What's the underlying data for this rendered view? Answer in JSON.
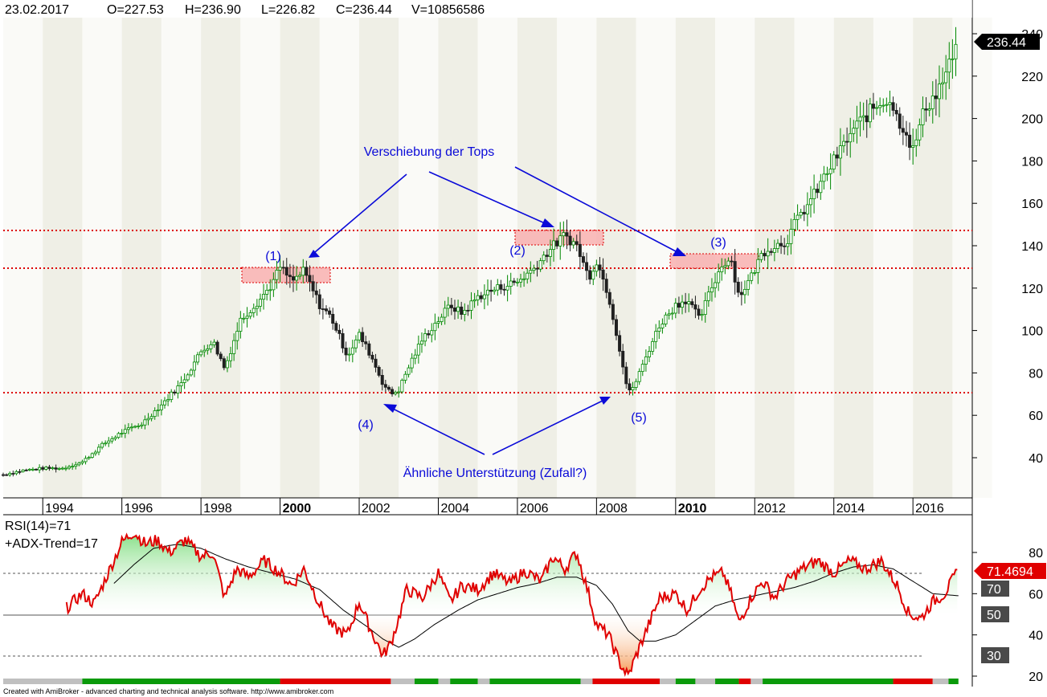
{
  "header": {
    "date": "23.02.2017",
    "open": "O=227.53",
    "high": "H=236.90",
    "low": "L=226.82",
    "close": "C=236.44",
    "volume": "V=10856586"
  },
  "price_tag": "236.44",
  "footer": "Created with AmiBroker - advanced charting and technical analysis software. http://www.amibroker.com",
  "chart_data": [
    {
      "type": "candlestick",
      "y_ticks": [
        40,
        60,
        80,
        100,
        120,
        140,
        160,
        180,
        200,
        220,
        240
      ],
      "ylim": [
        20,
        243
      ],
      "x_ticks": [
        "1994",
        "1996",
        "1998",
        "2000",
        "2002",
        "2004",
        "2006",
        "2008",
        "2010",
        "2012",
        "2014",
        "2016"
      ],
      "bold_ticks": [
        "2000",
        "2010"
      ],
      "xlim": [
        1993.0,
        2017.5
      ],
      "last": 236.44,
      "close_path": [
        [
          1993.0,
          32
        ],
        [
          1993.5,
          34
        ],
        [
          1994.0,
          35
        ],
        [
          1994.5,
          35
        ],
        [
          1995.0,
          38
        ],
        [
          1995.5,
          46
        ],
        [
          1996.0,
          52
        ],
        [
          1996.5,
          56
        ],
        [
          1997.0,
          65
        ],
        [
          1997.5,
          75
        ],
        [
          1998.0,
          90
        ],
        [
          1998.3,
          95
        ],
        [
          1998.6,
          82
        ],
        [
          1999.0,
          105
        ],
        [
          1999.5,
          115
        ],
        [
          1999.8,
          122
        ],
        [
          2000.0,
          130
        ],
        [
          2000.3,
          123
        ],
        [
          2000.6,
          128
        ],
        [
          2001.0,
          112
        ],
        [
          2001.3,
          106
        ],
        [
          2001.7,
          88
        ],
        [
          2002.0,
          98
        ],
        [
          2002.3,
          88
        ],
        [
          2002.6,
          75
        ],
        [
          2002.8,
          70
        ],
        [
          2003.0,
          72
        ],
        [
          2003.3,
          85
        ],
        [
          2003.6,
          96
        ],
        [
          2004.0,
          105
        ],
        [
          2004.3,
          112
        ],
        [
          2004.6,
          108
        ],
        [
          2005.0,
          116
        ],
        [
          2005.5,
          120
        ],
        [
          2006.0,
          123
        ],
        [
          2006.4,
          129
        ],
        [
          2006.8,
          138
        ],
        [
          2007.2,
          145
        ],
        [
          2007.5,
          140
        ],
        [
          2007.8,
          125
        ],
        [
          2008.0,
          133
        ],
        [
          2008.3,
          117
        ],
        [
          2008.6,
          90
        ],
        [
          2008.8,
          70
        ],
        [
          2009.0,
          76
        ],
        [
          2009.3,
          90
        ],
        [
          2009.6,
          103
        ],
        [
          2010.0,
          112
        ],
        [
          2010.3,
          115
        ],
        [
          2010.6,
          105
        ],
        [
          2010.9,
          120
        ],
        [
          2011.2,
          132
        ],
        [
          2011.4,
          134
        ],
        [
          2011.6,
          116
        ],
        [
          2011.9,
          125
        ],
        [
          2012.2,
          137
        ],
        [
          2012.5,
          140
        ],
        [
          2012.8,
          142
        ],
        [
          2013.0,
          150
        ],
        [
          2013.5,
          164
        ],
        [
          2014.0,
          180
        ],
        [
          2014.5,
          195
        ],
        [
          2015.0,
          205
        ],
        [
          2015.4,
          210
        ],
        [
          2015.6,
          200
        ],
        [
          2015.8,
          195
        ],
        [
          2016.0,
          185
        ],
        [
          2016.3,
          205
        ],
        [
          2016.6,
          212
        ],
        [
          2016.9,
          224
        ],
        [
          2017.15,
          236.44
        ]
      ]
    },
    {
      "type": "line",
      "series": [
        {
          "name": "RSI(14)=71"
        },
        {
          "name": "+ADX-Trend=17"
        }
      ],
      "y_ticks": [
        20,
        40,
        60,
        80
      ],
      "ylim": [
        17,
        92
      ],
      "bands": [
        "70",
        "50",
        "30"
      ],
      "last": "71.4694",
      "rsi_path": [
        [
          1994.6,
          53
        ],
        [
          1995.0,
          60
        ],
        [
          1995.3,
          55
        ],
        [
          1995.7,
          72
        ],
        [
          1996.0,
          85
        ],
        [
          1996.3,
          90
        ],
        [
          1996.6,
          84
        ],
        [
          1996.9,
          86
        ],
        [
          1997.2,
          80
        ],
        [
          1997.6,
          86
        ],
        [
          1998.0,
          78
        ],
        [
          1998.3,
          80
        ],
        [
          1998.6,
          58
        ],
        [
          1998.9,
          72
        ],
        [
          1999.2,
          68
        ],
        [
          1999.6,
          76
        ],
        [
          2000.0,
          70
        ],
        [
          2000.3,
          64
        ],
        [
          2000.6,
          72
        ],
        [
          2001.0,
          55
        ],
        [
          2001.3,
          44
        ],
        [
          2001.7,
          40
        ],
        [
          2002.0,
          56
        ],
        [
          2002.3,
          42
        ],
        [
          2002.6,
          30
        ],
        [
          2002.8,
          36
        ],
        [
          2003.0,
          48
        ],
        [
          2003.2,
          62
        ],
        [
          2003.6,
          58
        ],
        [
          2004.0,
          70
        ],
        [
          2004.3,
          56
        ],
        [
          2004.6,
          64
        ],
        [
          2005.0,
          62
        ],
        [
          2005.4,
          70
        ],
        [
          2005.8,
          65
        ],
        [
          2006.2,
          71
        ],
        [
          2006.6,
          66
        ],
        [
          2006.9,
          78
        ],
        [
          2007.2,
          72
        ],
        [
          2007.5,
          80
        ],
        [
          2007.8,
          60
        ],
        [
          2008.0,
          45
        ],
        [
          2008.3,
          40
        ],
        [
          2008.6,
          26
        ],
        [
          2008.8,
          20
        ],
        [
          2009.0,
          30
        ],
        [
          2009.3,
          44
        ],
        [
          2009.6,
          58
        ],
        [
          2010.0,
          60
        ],
        [
          2010.3,
          52
        ],
        [
          2010.6,
          62
        ],
        [
          2010.9,
          68
        ],
        [
          2011.2,
          70
        ],
        [
          2011.4,
          60
        ],
        [
          2011.6,
          46
        ],
        [
          2011.9,
          58
        ],
        [
          2012.2,
          66
        ],
        [
          2012.5,
          58
        ],
        [
          2012.8,
          66
        ],
        [
          2013.2,
          72
        ],
        [
          2013.6,
          76
        ],
        [
          2014.0,
          70
        ],
        [
          2014.4,
          76
        ],
        [
          2014.8,
          72
        ],
        [
          2015.2,
          76
        ],
        [
          2015.6,
          64
        ],
        [
          2015.9,
          50
        ],
        [
          2016.2,
          48
        ],
        [
          2016.5,
          56
        ],
        [
          2016.8,
          60
        ],
        [
          2017.15,
          71.47
        ]
      ],
      "adx_path": [
        [
          1995.8,
          65
        ],
        [
          1996.3,
          74
        ],
        [
          1996.8,
          82
        ],
        [
          1997.4,
          84
        ],
        [
          1998.0,
          82
        ],
        [
          1998.6,
          77
        ],
        [
          1999.2,
          73
        ],
        [
          1999.8,
          70
        ],
        [
          2000.4,
          67
        ],
        [
          2001.0,
          62
        ],
        [
          2001.6,
          52
        ],
        [
          2002.2,
          44
        ],
        [
          2002.6,
          38
        ],
        [
          2003.0,
          34
        ],
        [
          2003.4,
          38
        ],
        [
          2003.9,
          45
        ],
        [
          2004.5,
          52
        ],
        [
          2005.0,
          57
        ],
        [
          2005.5,
          60
        ],
        [
          2006.0,
          63
        ],
        [
          2006.5,
          65
        ],
        [
          2007.0,
          68
        ],
        [
          2007.5,
          68
        ],
        [
          2008.0,
          64
        ],
        [
          2008.4,
          55
        ],
        [
          2008.8,
          42
        ],
        [
          2009.1,
          37
        ],
        [
          2009.5,
          37
        ],
        [
          2010.0,
          40
        ],
        [
          2010.5,
          47
        ],
        [
          2011.0,
          54
        ],
        [
          2011.5,
          57
        ],
        [
          2012.0,
          59
        ],
        [
          2012.5,
          61
        ],
        [
          2013.0,
          63
        ],
        [
          2013.5,
          66
        ],
        [
          2014.0,
          70
        ],
        [
          2014.5,
          73
        ],
        [
          2015.0,
          74
        ],
        [
          2015.5,
          72
        ],
        [
          2016.0,
          66
        ],
        [
          2016.5,
          60
        ],
        [
          2017.15,
          59
        ]
      ]
    }
  ],
  "annotations": {
    "tops_title": "Verschiebung der Tops",
    "support_title": "Ähnliche Unterstützung (Zufall?)",
    "label_1": "(1)",
    "label_2": "(2)",
    "label_3": "(3)",
    "label_4": "(4)",
    "label_5": "(5)"
  },
  "colors": {
    "candle_up": "#008800",
    "candle_down": "#202020",
    "dotted_lines": "#dd0000",
    "annotation": "#0a0ad8",
    "rsi": "#e00000",
    "adx": "#000000",
    "price_tag_bg": "#000000",
    "rsi_tag_bg": "#e00000",
    "band_label_bg": "#4a4a4a",
    "zone_fill": "#f8b0b0"
  }
}
